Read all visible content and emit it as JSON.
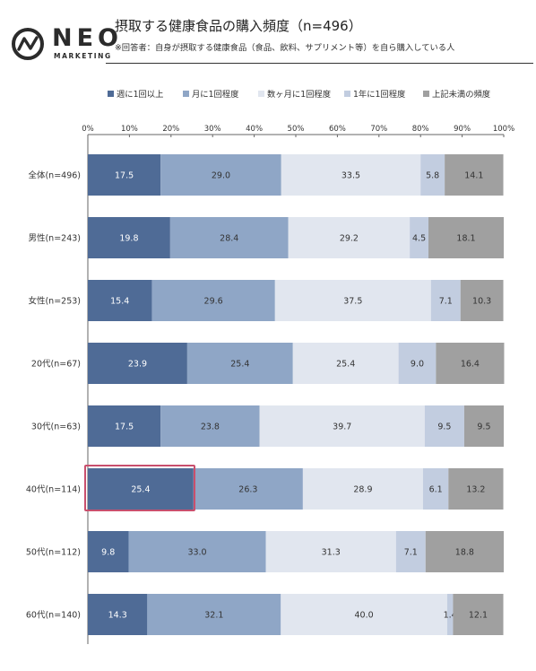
{
  "logo": {
    "main": "NEO",
    "sub": "MARKETING"
  },
  "header": {
    "title": "摂取する健康食品の購入頻度（n=496）",
    "subtitle": "※回答者：自身が摂取する健康食品（食品、飲料、サプリメント等）を自ら購入している人"
  },
  "colors": {
    "series": [
      "#4f6b96",
      "#8fa6c6",
      "#e1e6ef",
      "#c2cde0",
      "#a0a0a0"
    ],
    "text_dark_series": "#333333",
    "text_light_series": "#ffffff",
    "highlight": "#c94f6d"
  },
  "chart_data": {
    "type": "bar",
    "orientation": "horizontal",
    "stacked": true,
    "percent": true,
    "xlim": [
      0,
      100
    ],
    "x_ticks": [
      "0%",
      "10%",
      "20%",
      "30%",
      "40%",
      "50%",
      "60%",
      "70%",
      "80%",
      "90%",
      "100%"
    ],
    "legend_position": "top",
    "categories": [
      "全体(n=496)",
      "男性(n=243)",
      "女性(n=253)",
      "20代(n=67)",
      "30代(n=63)",
      "40代(n=114)",
      "50代(n=112)",
      "60代(n=140)"
    ],
    "series": [
      {
        "name": "週に1回以上",
        "values": [
          17.5,
          19.8,
          15.4,
          23.9,
          17.5,
          25.4,
          9.8,
          14.3
        ]
      },
      {
        "name": "月に1回程度",
        "values": [
          29.0,
          28.4,
          29.6,
          25.4,
          23.8,
          26.3,
          33.0,
          32.1
        ]
      },
      {
        "name": "数ヶ月に1回程度",
        "values": [
          33.5,
          29.2,
          37.5,
          25.4,
          39.7,
          28.9,
          31.3,
          40.0
        ]
      },
      {
        "name": "1年に1回程度",
        "values": [
          5.8,
          4.5,
          7.1,
          9.0,
          9.5,
          6.1,
          7.1,
          1.4
        ]
      },
      {
        "name": "上記未満の頻度",
        "values": [
          14.1,
          18.1,
          10.3,
          16.4,
          9.5,
          13.2,
          18.8,
          12.1
        ]
      }
    ],
    "highlighted": {
      "category": "40代(n=114)",
      "series": "週に1回以上"
    }
  }
}
